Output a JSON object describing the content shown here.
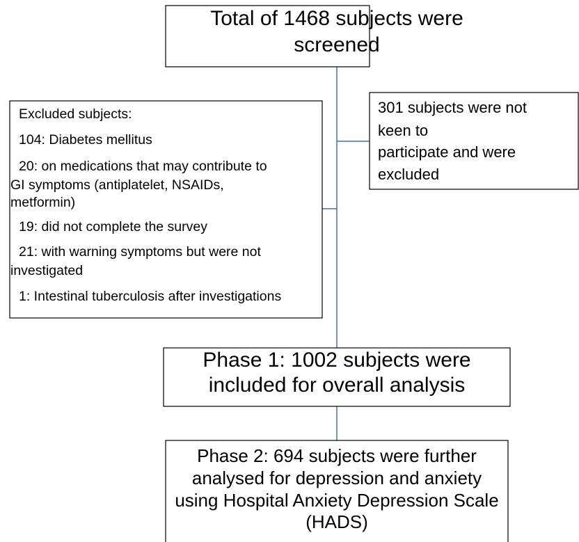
{
  "nodes": [
    {
      "lines": [
        "Total of 1468 subjects were",
        "screened"
      ]
    },
    {
      "lines": [
        "301 subjects were not",
        "keen to",
        "participate and were",
        "excluded"
      ]
    },
    {
      "title": "Excluded subjects:",
      "items": [
        {
          "lines": [
            "104: Diabetes mellitus"
          ]
        },
        {
          "lines": [
            "20: on medications that may contribute to",
            "GI symptoms (antiplatelet, NSAIDs,",
            "metformin)"
          ]
        },
        {
          "lines": [
            "19: did not complete the survey"
          ]
        },
        {
          "lines": [
            "21: with warning symptoms but were not",
            "investigated"
          ]
        },
        {
          "lines": [
            "1: Intestinal tuberculosis after investigations"
          ]
        }
      ]
    },
    {
      "lines": [
        "Phase 1: 1002 subjects were",
        "included for overall analysis"
      ]
    },
    {
      "lines": [
        "Phase 2: 694 subjects were further",
        "analysed for depression and anxiety",
        "using Hospital Anxiety Depression Scale",
        "(HADS)"
      ]
    }
  ]
}
